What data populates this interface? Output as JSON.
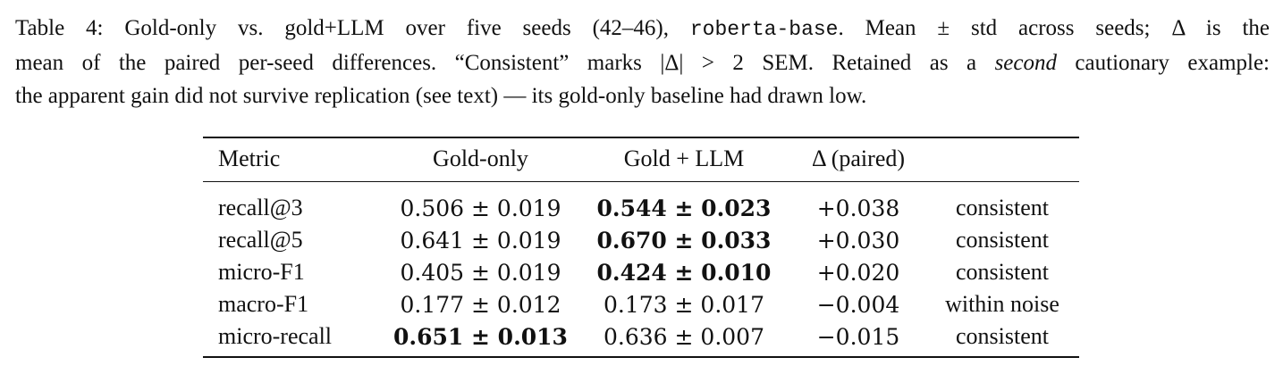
{
  "caption": {
    "line1": "Table 4: Gold-only vs. gold+LLM over five seeds (42–46), ",
    "model": "roberta-base",
    "line1_end": ". Mean ± std across seeds; Δ is the",
    "line2_start": "mean of the paired per-seed differences. “Consistent” marks |Δ| > 2 ",
    "sem": "SEM",
    "line2_end": ". Retained as a ",
    "second": "second",
    "line2_tail": " cautionary example:",
    "line3": "the apparent gain did not survive replication (see text) — its gold-only baseline had drawn low."
  },
  "table": {
    "headers": [
      "Metric",
      "Gold-only",
      "Gold + LLM",
      "Δ (paired)",
      ""
    ],
    "rows": [
      {
        "metric": "recall@3",
        "gold": "0.506 ± 0.019",
        "llm": "0.544 ± 0.023",
        "delta": "+0.038",
        "note": "consistent",
        "best": "llm"
      },
      {
        "metric": "recall@5",
        "gold": "0.641 ± 0.019",
        "llm": "0.670 ± 0.033",
        "delta": "+0.030",
        "note": "consistent",
        "best": "llm"
      },
      {
        "metric": "micro-F1",
        "gold": "0.405 ± 0.019",
        "llm": "0.424 ± 0.010",
        "delta": "+0.020",
        "note": "consistent",
        "best": "llm"
      },
      {
        "metric": "macro-F1",
        "gold": "0.177 ± 0.012",
        "llm": "0.173 ± 0.017",
        "delta": "−0.004",
        "note": "within noise",
        "best": "none"
      },
      {
        "metric": "micro-recall",
        "gold": "0.651 ± 0.013",
        "llm": "0.636 ± 0.007",
        "delta": "−0.015",
        "note": "consistent",
        "best": "gold"
      }
    ]
  }
}
